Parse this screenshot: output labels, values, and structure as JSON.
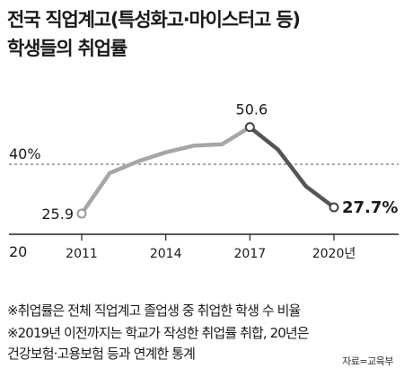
{
  "title_lines": [
    "전국 직업계고(특성화고·마이스터고 등)",
    "학생들의 취업률"
  ],
  "chart_data": {
    "type": "line",
    "title": "전국 직업계고(특성화고·마이스터고 등) 학생들의 취업률",
    "x": [
      2011,
      2012,
      2013,
      2014,
      2015,
      2016,
      2017,
      2018,
      2019,
      2020
    ],
    "x_tick_labels": [
      "2011",
      "2014",
      "2017",
      "2020년"
    ],
    "x_tick_values": [
      2011,
      2014,
      2017,
      2020
    ],
    "series": [
      {
        "values": [
          25.9,
          37.5,
          40.8,
          43.4,
          45.3,
          45.7,
          50.6,
          44.2,
          33.7,
          27.7
        ]
      }
    ],
    "y_tick_labels": [
      "20",
      "40%"
    ],
    "y_tick_values": [
      20,
      40
    ],
    "ylim": [
      20,
      55
    ],
    "data_labels": [
      {
        "x": 2011,
        "text": "25.9"
      },
      {
        "x": 2017,
        "text": "50.6"
      },
      {
        "x": 2020,
        "text": "27.7%"
      }
    ],
    "colors": {
      "rising": "#a6a6a6",
      "falling": "#555555",
      "axis": "#222222",
      "grid": "#555555"
    }
  },
  "notes": [
    "※취업률은 전체 직업계고 졸업생 중 취업한 학생 수 비율",
    "※2019년 이전까지는 학교가 작성한 취업률 취합, 20년은",
    "건강보험·고용보험 등과 연계한 통계"
  ],
  "source": "자료=교육부"
}
